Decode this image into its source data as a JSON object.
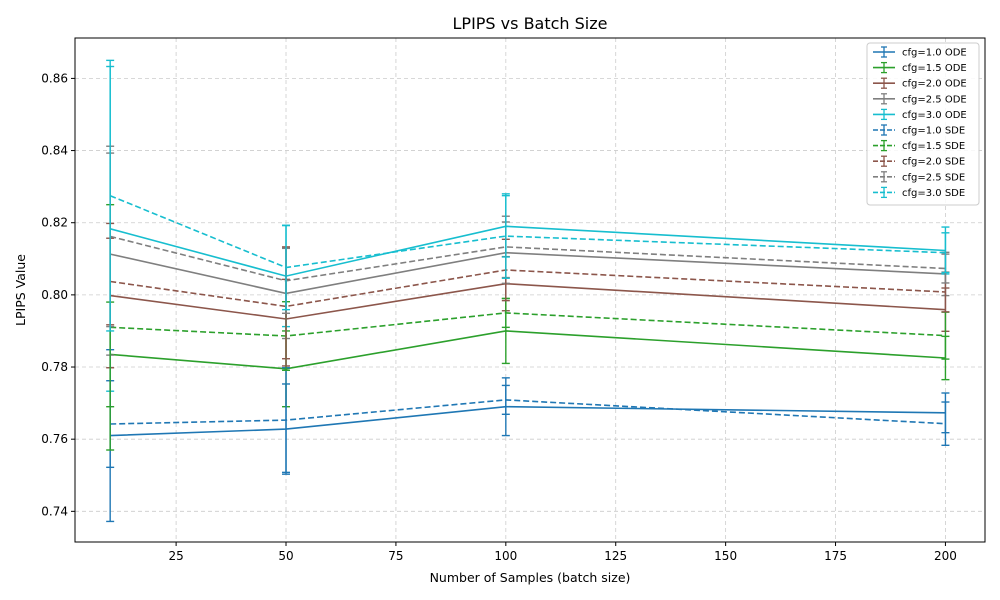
{
  "chart_data": {
    "type": "line",
    "title": "LPIPS vs Batch Size",
    "xlabel": "Number of Samples (batch size)",
    "ylabel": "LPIPS Value",
    "x": [
      10,
      50,
      100,
      200
    ],
    "xlim": [
      2,
      209
    ],
    "ylim": [
      0.7315,
      0.8712
    ],
    "xticks": [
      25,
      50,
      75,
      100,
      125,
      150,
      175,
      200
    ],
    "yticks": [
      0.74,
      0.76,
      0.78,
      0.8,
      0.82,
      0.84,
      0.86
    ],
    "ytick_labels": [
      "0.74",
      "0.76",
      "0.78",
      "0.80",
      "0.82",
      "0.84",
      "0.86"
    ],
    "grid": true,
    "legend_position": "top-right",
    "series": [
      {
        "name": "cfg=1.0 ODE",
        "color": "#1f77b4",
        "dash": "solid",
        "values": [
          0.761,
          0.7628,
          0.769,
          0.7673
        ],
        "errors": [
          0.0238,
          0.0125,
          0.008,
          0.0055
        ]
      },
      {
        "name": "cfg=1.5 ODE",
        "color": "#2ca02c",
        "dash": "solid",
        "values": [
          0.7835,
          0.7795,
          0.79,
          0.7825
        ],
        "errors": [
          0.0145,
          0.0105,
          0.009,
          0.006
        ]
      },
      {
        "name": "cfg=2.0 ODE",
        "color": "#8c564b",
        "dash": "solid",
        "values": [
          0.7998,
          0.7933,
          0.8031,
          0.7959
        ],
        "errors": [
          0.02,
          0.011,
          0.0075,
          0.006
        ]
      },
      {
        "name": "cfg=2.5 ODE",
        "color": "#7f7f7f",
        "dash": "solid",
        "values": [
          0.8113,
          0.8004,
          0.8117,
          0.8058
        ],
        "errors": [
          0.028,
          0.0125,
          0.0085,
          0.006
        ]
      },
      {
        "name": "cfg=3.0 ODE",
        "color": "#17becf",
        "dash": "solid",
        "values": [
          0.8183,
          0.8052,
          0.819,
          0.8123
        ],
        "errors": [
          0.045,
          0.014,
          0.0085,
          0.0065
        ]
      },
      {
        "name": "cfg=1.0 SDE",
        "color": "#1f77b4",
        "dash": "dashed",
        "values": [
          0.7642,
          0.7653,
          0.7709,
          0.7643
        ],
        "errors": [
          0.012,
          0.0145,
          0.004,
          0.006
        ]
      },
      {
        "name": "cfg=1.5 SDE",
        "color": "#2ca02c",
        "dash": "dashed",
        "values": [
          0.791,
          0.7886,
          0.795,
          0.7887
        ],
        "errors": [
          0.034,
          0.0095,
          0.004,
          0.0065
        ]
      },
      {
        "name": "cfg=2.0 SDE",
        "color": "#8c564b",
        "dash": "dashed",
        "values": [
          0.8037,
          0.7968,
          0.8069,
          0.8008
        ],
        "errors": [
          0.012,
          0.0165,
          0.0085,
          0.0055
        ]
      },
      {
        "name": "cfg=2.5 SDE",
        "color": "#7f7f7f",
        "dash": "dashed",
        "values": [
          0.8162,
          0.8039,
          0.8133,
          0.8073
        ],
        "errors": [
          0.025,
          0.009,
          0.0085,
          0.004
        ]
      },
      {
        "name": "cfg=3.0 SDE",
        "color": "#17becf",
        "dash": "dashed",
        "values": [
          0.8275,
          0.8076,
          0.8163,
          0.8117
        ],
        "errors": [
          0.0375,
          0.0117,
          0.0117,
          0.0055
        ]
      }
    ]
  }
}
